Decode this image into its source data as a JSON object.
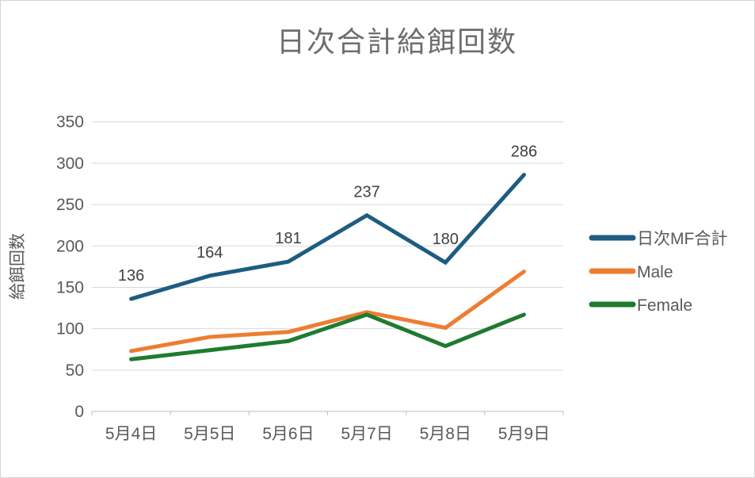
{
  "chart": {
    "title": "日次合計給餌回数",
    "y_axis_title": "給餌回数"
  },
  "chart_data": {
    "type": "line",
    "title": "日次合計給餌回数",
    "ylabel": "給餌回数",
    "xlabel": "",
    "categories": [
      "5月4日",
      "5月5日",
      "5月6日",
      "5月7日",
      "5月8日",
      "5月9日"
    ],
    "series": [
      {
        "name": "日次MF合計",
        "color": "#1d5d80",
        "values": [
          136,
          164,
          181,
          237,
          180,
          286
        ],
        "data_labels": [
          136,
          164,
          181,
          237,
          180,
          286
        ]
      },
      {
        "name": "Male",
        "color": "#ed7d31",
        "values": [
          73,
          90,
          96,
          120,
          101,
          169
        ],
        "data_labels": null
      },
      {
        "name": "Female",
        "color": "#1e7b2f",
        "values": [
          63,
          74,
          85,
          117,
          79,
          117
        ],
        "data_labels": null
      }
    ],
    "ylim": [
      0,
      350
    ],
    "ytick_step": 50,
    "yticks": [
      0,
      50,
      100,
      150,
      200,
      250,
      300,
      350
    ],
    "grid": true,
    "legend_position": "right"
  },
  "style": {
    "title_color": "#6d6d6d",
    "axis_label_color": "#595959",
    "data_label_color": "#404040",
    "gridline_color": "#d9d9d9",
    "axis_line_color": "#bfbfbf",
    "background": "#ffffff"
  }
}
